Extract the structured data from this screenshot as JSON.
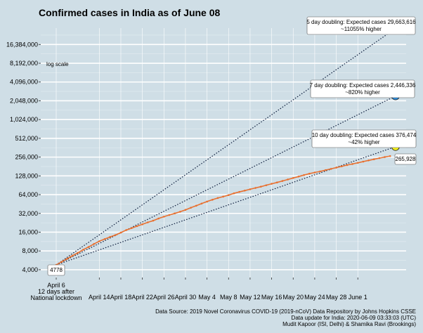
{
  "chart_data": {
    "type": "line",
    "title": "Confirmed cases in India as of June 08",
    "scale_note": "log scale",
    "y_scale": "log2",
    "ylim": [
      3000,
      30000000
    ],
    "y_ticks": [
      4000,
      8000,
      16000,
      32000,
      64000,
      128000,
      256000,
      512000,
      1024000,
      2048000,
      4096000,
      8192000,
      16384000
    ],
    "y_tick_labels": [
      "4,000",
      "8,000",
      "16,000",
      "32,000",
      "64,000",
      "128,000",
      "256,000",
      "512,000",
      "1,024,000",
      "2,048,000",
      "4,096,000",
      "8,192,000",
      "16,384,000"
    ],
    "x_start": "April 6",
    "x_start_label_lines": [
      "April 6",
      "12 days after",
      "National lockdown"
    ],
    "x_ticks": [
      {
        "day": 8,
        "label": "April 14"
      },
      {
        "day": 12,
        "label": "April 18"
      },
      {
        "day": 16,
        "label": "April 22"
      },
      {
        "day": 20,
        "label": "April 26"
      },
      {
        "day": 24,
        "label": "April 30"
      },
      {
        "day": 28,
        "label": "May 4"
      },
      {
        "day": 32,
        "label": "May 8"
      },
      {
        "day": 36,
        "label": "May 12"
      },
      {
        "day": 40,
        "label": "May 16"
      },
      {
        "day": 44,
        "label": "May 20"
      },
      {
        "day": 48,
        "label": "May 24"
      },
      {
        "day": 52,
        "label": "May 28"
      },
      {
        "day": 56,
        "label": "June 1"
      }
    ],
    "xlim": [
      0,
      63
    ],
    "series": [
      {
        "values": [
          4778,
          5350,
          5980,
          6700,
          7450,
          8350,
          9250,
          10350,
          11450,
          12400,
          13450,
          14400,
          15750,
          17300,
          18600,
          20000,
          21400,
          23000,
          24500,
          26500,
          28400,
          30200,
          32000,
          34000,
          36500,
          39500,
          42500,
          46000,
          49500,
          53000,
          56500,
          59500,
          62900,
          67200,
          70800,
          74300,
          78000,
          81900,
          85900,
          90600,
          95600,
          100300,
          106000,
          112000,
          118400,
          124800,
          131800,
          138800,
          144900,
          150700,
          158300,
          165400,
          173500,
          181800,
          190600,
          198400,
          207200,
          216800,
          226700,
          236200,
          246600,
          256600,
          265928
        ],
        "color": "#e87030"
      }
    ],
    "projections": [
      {
        "label": "5 day doubling: Expected cases 29,663,616",
        "sub": "~11055% higher",
        "end_value": 29663616,
        "color": "#e8141c"
      },
      {
        "label": "7 day doubling: Expected cases 2,446,336",
        "sub": "~820% higher",
        "end_value": 2446336,
        "color": "#2d8fe0"
      },
      {
        "label": "10 day doubling: Expected cases 376,474",
        "sub": "~42% higher",
        "end_value": 376474,
        "color": "#f3f020"
      }
    ],
    "start_label": "4778",
    "end_label": "265,928",
    "source_lines": [
      "Data Source: 2019 Novel Coronavirus COVID-19 (2019-nCoV) Data Repository by Johns Hopkins CSSE",
      "Data update for India: 2020-06-09 03:33:03 (UTC)",
      "Mudit Kapoor (ISI, Delhi) & Shamika Ravi (Brookings)"
    ],
    "grid": true
  }
}
